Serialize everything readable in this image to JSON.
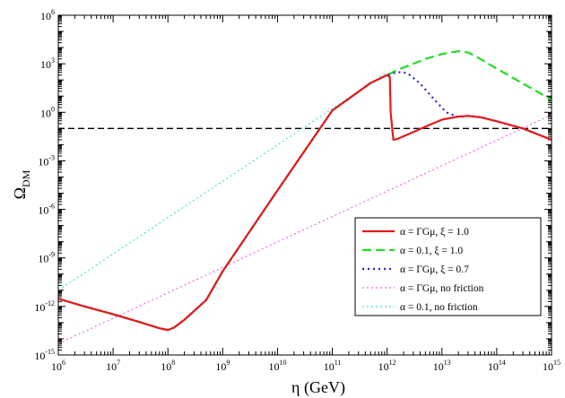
{
  "chart_data": {
    "type": "line",
    "title": "",
    "xlabel": "η (GeV)",
    "ylabel_main": "Ω",
    "ylabel_sub": "DM",
    "x_scale": "log",
    "y_scale": "log",
    "xlim": [
      1000000.0,
      1000000000000000.0
    ],
    "ylim": [
      1e-15,
      1000000.0
    ],
    "x_ticks": [
      {
        "base": "10",
        "exp": "6",
        "value": 1000000.0
      },
      {
        "base": "10",
        "exp": "7",
        "value": 10000000.0
      },
      {
        "base": "10",
        "exp": "8",
        "value": 100000000.0
      },
      {
        "base": "10",
        "exp": "9",
        "value": 1000000000.0
      },
      {
        "base": "10",
        "exp": "10",
        "value": 10000000000.0
      },
      {
        "base": "10",
        "exp": "11",
        "value": 100000000000.0
      },
      {
        "base": "10",
        "exp": "12",
        "value": 1000000000000.0
      },
      {
        "base": "10",
        "exp": "13",
        "value": 10000000000000.0
      },
      {
        "base": "10",
        "exp": "14",
        "value": 100000000000000.0
      },
      {
        "base": "10",
        "exp": "15",
        "value": 1000000000000000.0
      }
    ],
    "y_ticks": [
      {
        "base": "10",
        "exp": "-15",
        "value": 1e-15
      },
      {
        "base": "10",
        "exp": "-12",
        "value": 1e-12
      },
      {
        "base": "10",
        "exp": "-9",
        "value": 1e-09
      },
      {
        "base": "10",
        "exp": "-6",
        "value": 1e-06
      },
      {
        "base": "10",
        "exp": "-3",
        "value": 0.001
      },
      {
        "base": "10",
        "exp": "0",
        "value": 1
      },
      {
        "base": "10",
        "exp": "3",
        "value": 1000.0
      },
      {
        "base": "10",
        "exp": "6",
        "value": 1000000.0
      }
    ],
    "grid": false,
    "legend_position": "lower-right",
    "reference_line": {
      "y": 0.1,
      "color": "#000000",
      "style": "dashed"
    },
    "series": [
      {
        "name": "α = ΓGμ, ξ = 1.0",
        "color": "#e41a1c",
        "style": "solid",
        "x": [
          1000000.0,
          3000000.0,
          10000000.0,
          30000000.0,
          70000000.0,
          100000000.0,
          130000000.0,
          200000000.0,
          500000000.0,
          1000000000.0,
          10000000000.0,
          100000000000.0,
          500000000000.0,
          1000000000000.0,
          1120000000000.0,
          1160000000000.0,
          1300000000000.0,
          1500000000000.0,
          3000000000000.0,
          5000000000000.0,
          10000000000000.0,
          20000000000000.0,
          30000000000000.0,
          50000000000000.0,
          100000000000000.0,
          300000000000000.0,
          1000000000000000.0
        ],
        "y": [
          3e-12,
          1e-12,
          3.3e-13,
          1.1e-13,
          4.5e-14,
          3.5e-14,
          5e-14,
          1.5e-13,
          2.5e-12,
          1.5e-10,
          1.5e-05,
          1.3,
          65,
          200,
          150,
          1,
          0.02,
          0.022,
          0.06,
          0.13,
          0.35,
          0.55,
          0.6,
          0.5,
          0.28,
          0.1,
          0.02
        ]
      },
      {
        "name": "α = 0.1, ξ = 1.0",
        "color": "#22dd22",
        "style": "dashed",
        "x": [
          1000000.0,
          3000000.0,
          10000000.0,
          30000000.0,
          70000000.0,
          100000000.0,
          130000000.0,
          200000000.0,
          500000000.0,
          1000000000.0,
          10000000000.0,
          100000000000.0,
          500000000000.0,
          1000000000000.0,
          1500000000000.0,
          3000000000000.0,
          5000000000000.0,
          10000000000000.0,
          20000000000000.0,
          30000000000000.0,
          50000000000000.0,
          100000000000000.0,
          300000000000000.0,
          1000000000000000.0
        ],
        "y": [
          3e-12,
          1e-12,
          3.3e-13,
          1.1e-13,
          4.5e-14,
          3.5e-14,
          5e-14,
          1.5e-13,
          2.5e-12,
          1.5e-10,
          1.5e-05,
          1.3,
          65,
          200,
          400,
          1000,
          2000,
          4000,
          6000,
          5000,
          2000,
          500,
          60,
          6
        ]
      },
      {
        "name": "α = ΓGμ, ξ = 0.7",
        "color": "#2222cc",
        "style": "dotted",
        "x": [
          1000000.0,
          3000000.0,
          10000000.0,
          30000000.0,
          70000000.0,
          100000000.0,
          130000000.0,
          200000000.0,
          500000000.0,
          1000000000.0,
          10000000000.0,
          100000000000.0,
          500000000000.0,
          1000000000000.0,
          1500000000000.0,
          2000000000000.0,
          2500000000000.0,
          4000000000000.0,
          7000000000000.0,
          12000000000000.0,
          20000000000000.0,
          30000000000000.0,
          50000000000000.0,
          100000000000000.0,
          300000000000000.0,
          1000000000000000.0
        ],
        "y": [
          3e-12,
          1e-12,
          3.3e-13,
          1.1e-13,
          4.5e-14,
          3.5e-14,
          5e-14,
          1.5e-13,
          2.5e-12,
          1.5e-10,
          1.5e-05,
          1.3,
          65,
          200,
          300,
          300,
          220,
          60,
          7,
          1,
          0.5,
          0.6,
          0.5,
          0.28,
          0.1,
          0.02
        ]
      },
      {
        "name": "α = ΓGμ, no friction",
        "color": "#ee66ee",
        "style": "dotted",
        "x": [
          1000000.0,
          1000000000000000.0
        ],
        "y": [
          5e-15,
          0.7
        ]
      },
      {
        "name": "α = 0.1, no friction",
        "color": "#44dddd",
        "style": "dotted",
        "x": [
          1000000.0,
          1000000000000.0
        ],
        "y": [
          1e-11,
          300
        ]
      }
    ]
  }
}
